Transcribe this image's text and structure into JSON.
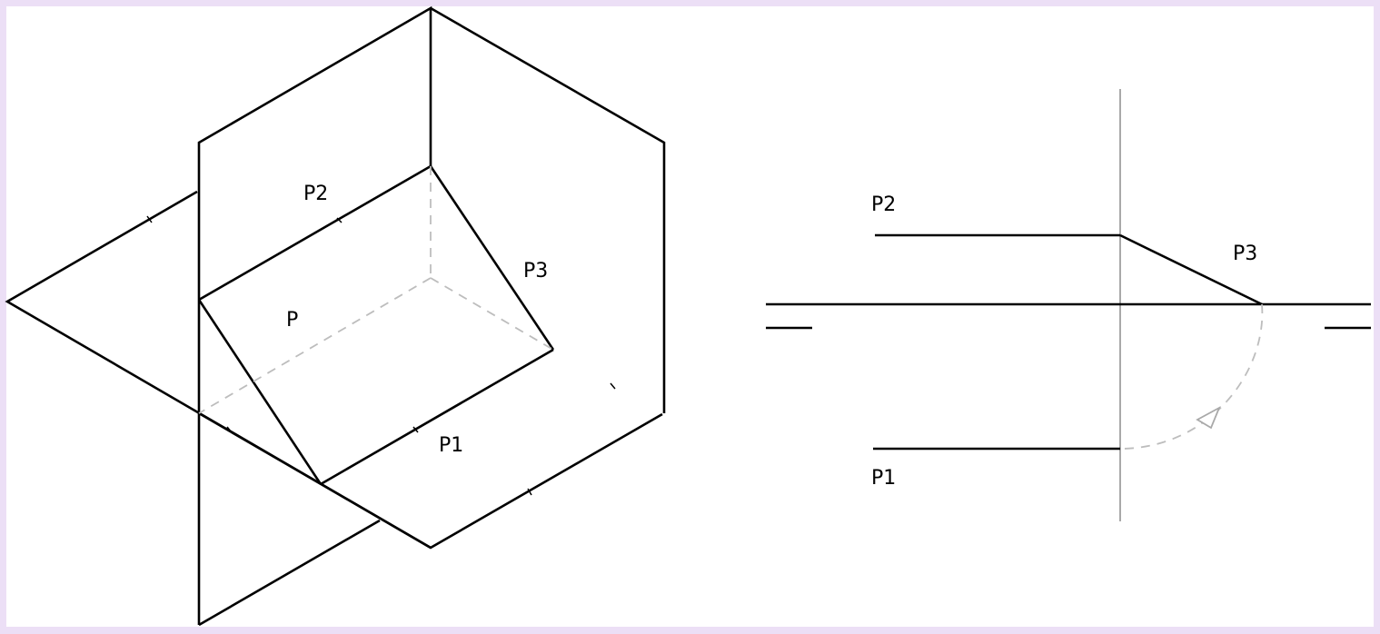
{
  "colors": {
    "page_background": "#ecdff6",
    "canvas_background": "#ffffff",
    "line": "#000000",
    "hidden_line": "#bdbdbd",
    "axis": "#a9a9a9"
  },
  "isometric_view": {
    "labels": {
      "p2": "P2",
      "p3": "P3",
      "p": "P",
      "p1": "P1"
    }
  },
  "projection_view": {
    "labels": {
      "p2": "P2",
      "p3": "P3",
      "p1": "P1"
    }
  }
}
